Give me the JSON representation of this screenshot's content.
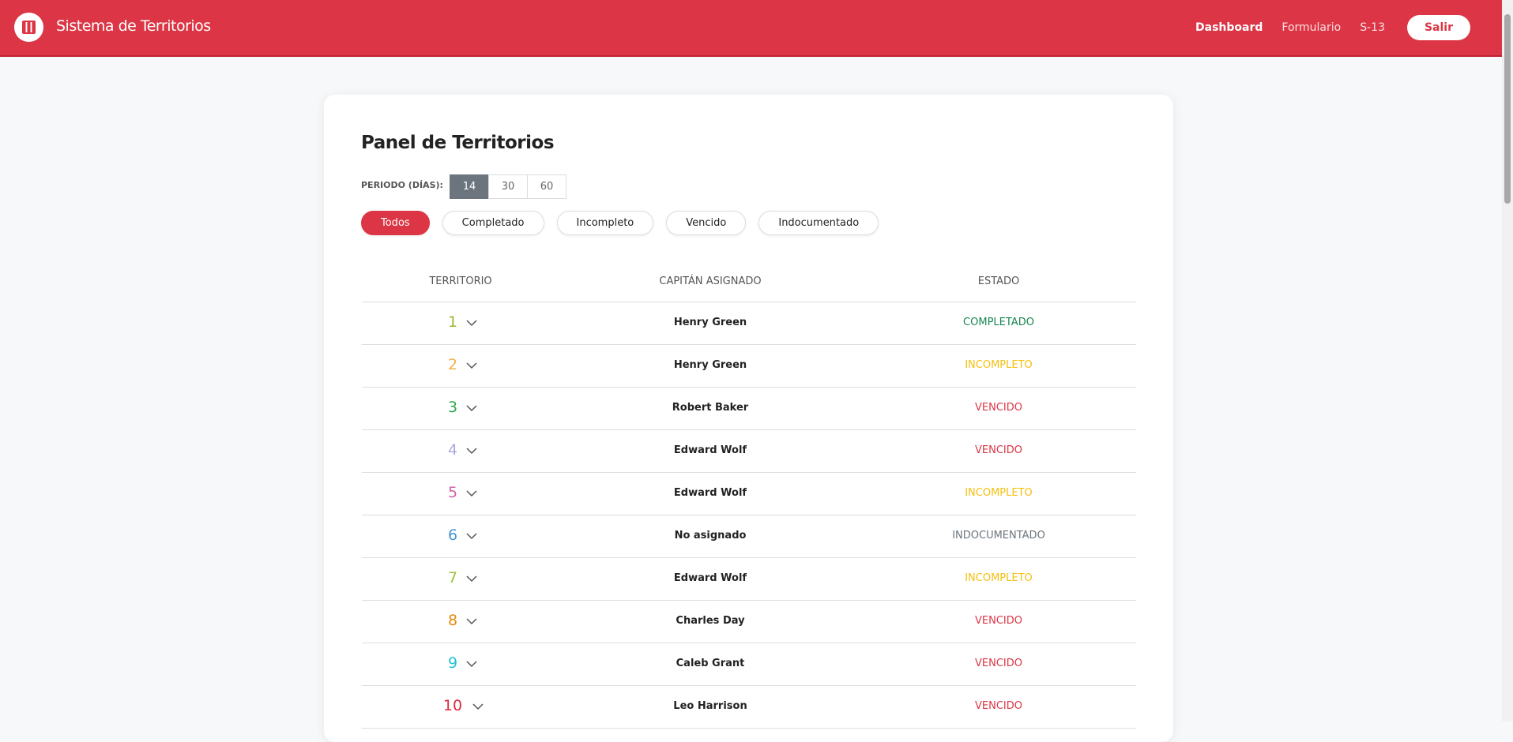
{
  "header": {
    "title": "Sistema de Territorios",
    "nav": [
      "Dashboard",
      "Formulario",
      "S-13"
    ],
    "logout": "Salir"
  },
  "panel": {
    "title": "Panel de Territorios",
    "period": {
      "label": "PERIODO (DÍAS):",
      "options": [
        "14",
        "30",
        "60"
      ],
      "active": 0
    },
    "filters": {
      "options": [
        "Todos",
        "Completado",
        "Incompleto",
        "Vencido",
        "Indocumentado"
      ],
      "active": 0
    },
    "table": {
      "columns": [
        "TERRITORIO",
        "CAPITÁN ASIGNADO",
        "ESTADO"
      ],
      "rows": [
        {
          "territory": "1",
          "color": "#9ab833",
          "captain": "Henry Green",
          "status": "COMPLETADO",
          "status_color": "#198754"
        },
        {
          "territory": "2",
          "color": "#f2b04c",
          "captain": "Henry Green",
          "status": "INCOMPLETO",
          "status_color": "#f5bf0f"
        },
        {
          "territory": "3",
          "color": "#2ea64a",
          "captain": "Robert Baker",
          "status": "VENCIDO",
          "status_color": "#dc3545"
        },
        {
          "territory": "4",
          "color": "#a9a9dc",
          "captain": "Edward Wolf",
          "status": "VENCIDO",
          "status_color": "#dc3545"
        },
        {
          "territory": "5",
          "color": "#d260a6",
          "captain": "Edward Wolf",
          "status": "INCOMPLETO",
          "status_color": "#f5bf0f"
        },
        {
          "territory": "6",
          "color": "#4a93d8",
          "captain": "No asignado",
          "status": "INDOCUMENTADO",
          "status_color": "#6c757d"
        },
        {
          "territory": "7",
          "color": "#9cc43a",
          "captain": "Edward Wolf",
          "status": "INCOMPLETO",
          "status_color": "#f5bf0f"
        },
        {
          "territory": "8",
          "color": "#e48c12",
          "captain": "Charles Day",
          "status": "VENCIDO",
          "status_color": "#dc3545"
        },
        {
          "territory": "9",
          "color": "#1fc0d6",
          "captain": "Caleb Grant",
          "status": "VENCIDO",
          "status_color": "#dc3545"
        },
        {
          "territory": "10",
          "color": "#dc2a3e",
          "captain": "Leo Harrison",
          "status": "VENCIDO",
          "status_color": "#dc3545"
        }
      ]
    }
  }
}
